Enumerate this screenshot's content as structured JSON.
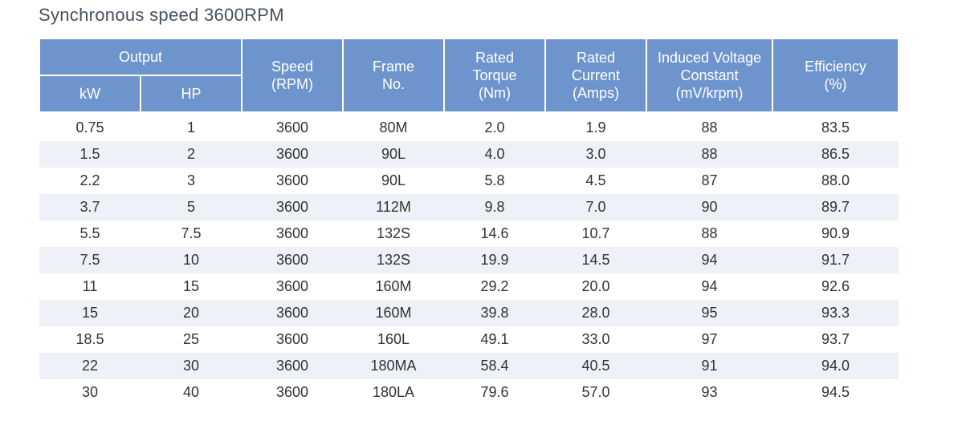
{
  "title": "Synchronous speed 3600RPM",
  "headers": {
    "output": "Output",
    "kw": "kW",
    "hp": "HP",
    "speed": "Speed\n(RPM)",
    "frame": "Frame\nNo.",
    "torque": "Rated\nTorque\n(Nm)",
    "current": "Rated\nCurrent\n(Amps)",
    "voltage": "Induced Voltage\nConstant\n(mV/krpm)",
    "efficiency": "Efficiency\n(%)"
  },
  "rows": [
    [
      "0.75",
      "1",
      "3600",
      "80M",
      "2.0",
      "1.9",
      "88",
      "83.5"
    ],
    [
      "1.5",
      "2",
      "3600",
      "90L",
      "4.0",
      "3.0",
      "88",
      "86.5"
    ],
    [
      "2.2",
      "3",
      "3600",
      "90L",
      "5.8",
      "4.5",
      "87",
      "88.0"
    ],
    [
      "3.7",
      "5",
      "3600",
      "112M",
      "9.8",
      "7.0",
      "90",
      "89.7"
    ],
    [
      "5.5",
      "7.5",
      "3600",
      "132S",
      "14.6",
      "10.7",
      "88",
      "90.9"
    ],
    [
      "7.5",
      "10",
      "3600",
      "132S",
      "19.9",
      "14.5",
      "94",
      "91.7"
    ],
    [
      "11",
      "15",
      "3600",
      "160M",
      "29.2",
      "20.0",
      "94",
      "92.6"
    ],
    [
      "15",
      "20",
      "3600",
      "160M",
      "39.8",
      "28.0",
      "95",
      "93.3"
    ],
    [
      "18.5",
      "25",
      "3600",
      "160L",
      "49.1",
      "33.0",
      "97",
      "93.7"
    ],
    [
      "22",
      "30",
      "3600",
      "180MA",
      "58.4",
      "40.5",
      "91",
      "94.0"
    ],
    [
      "30",
      "40",
      "3600",
      "180LA",
      "79.6",
      "57.0",
      "93",
      "94.5"
    ]
  ],
  "colors": {
    "header_bg": "#6e94cd",
    "header_text": "#ffffff",
    "stripe": "#eef1f8",
    "title": "#44515e"
  }
}
